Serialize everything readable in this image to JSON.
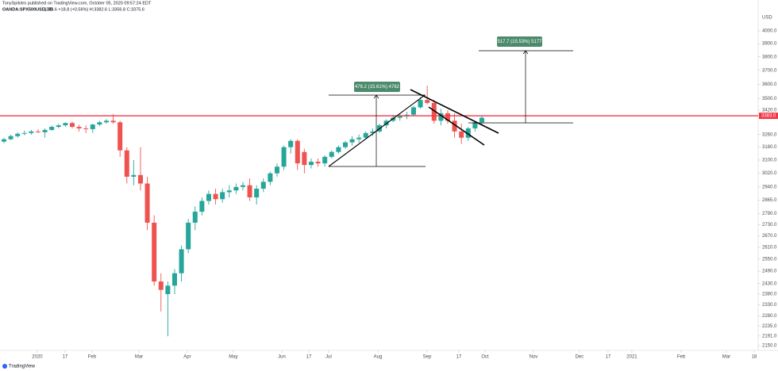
{
  "chart_data": {
    "type": "candlestick",
    "title": "TonySpilotro published on TradingView.com, October 05, 2020 09:57:24 EDT",
    "subtitle": "OANDA:SPX500USD, 3D",
    "quote": "3375.6 +18.8 (+0.56%) H:3382.6 L:3356.8 C:3375.6",
    "y_label": "USD",
    "footer": "TradingView",
    "up_color": "#26a69a",
    "down_color": "#ef5350",
    "log_scale": true,
    "ylim": [
      2120,
      4120
    ],
    "yticks": [
      {
        "value": 4000,
        "label": "4000.0"
      },
      {
        "value": 3900,
        "label": "3900.0"
      },
      {
        "value": 3800,
        "label": "3800.0"
      },
      {
        "value": 3700,
        "label": "3700.0"
      },
      {
        "value": 3600,
        "label": "3600.0"
      },
      {
        "value": 3500,
        "label": "3500.0"
      },
      {
        "value": 3420,
        "label": "3420.0"
      },
      {
        "value": 3260,
        "label": "3260.0"
      },
      {
        "value": 3180,
        "label": "3180.0"
      },
      {
        "value": 3100,
        "label": "3100.0"
      },
      {
        "value": 3020,
        "label": "3020.0"
      },
      {
        "value": 2940,
        "label": "2940.0"
      },
      {
        "value": 2865,
        "label": "2865.0"
      },
      {
        "value": 2790,
        "label": "2790.0"
      },
      {
        "value": 2730,
        "label": "2730.0"
      },
      {
        "value": 2670,
        "label": "2670.0"
      },
      {
        "value": 2610,
        "label": "2610.0"
      },
      {
        "value": 2550,
        "label": "2550.0"
      },
      {
        "value": 2490,
        "label": "2490.0"
      },
      {
        "value": 2430,
        "label": "2430.0"
      },
      {
        "value": 2380,
        "label": "2380.0"
      },
      {
        "value": 2330,
        "label": "2330.0"
      },
      {
        "value": 2280,
        "label": "2280.0"
      },
      {
        "value": 2235,
        "label": "2235.0"
      },
      {
        "value": 2191,
        "label": "2191.0"
      },
      {
        "value": 2150,
        "label": "2150.0"
      }
    ],
    "xlim": [
      -0.58,
      110.47
    ],
    "xticks": [
      {
        "value": 4.88,
        "label": "2020"
      },
      {
        "value": 8.95,
        "label": "17"
      },
      {
        "value": 12.9,
        "label": "Feb"
      },
      {
        "value": 19.77,
        "label": "Mar"
      },
      {
        "value": 26.86,
        "label": "Apr"
      },
      {
        "value": 33.6,
        "label": "May"
      },
      {
        "value": 40.7,
        "label": "Jun"
      },
      {
        "value": 44.65,
        "label": "17"
      },
      {
        "value": 47.56,
        "label": "Jul"
      },
      {
        "value": 54.77,
        "label": "Aug"
      },
      {
        "value": 61.98,
        "label": "Sep"
      },
      {
        "value": 66.63,
        "label": "17"
      },
      {
        "value": 70.47,
        "label": "Oct"
      },
      {
        "value": 77.56,
        "label": "Nov"
      },
      {
        "value": 84.3,
        "label": "Dec"
      },
      {
        "value": 88.49,
        "label": "17"
      },
      {
        "value": 91.98,
        "label": "2021"
      },
      {
        "value": 99.19,
        "label": "Feb"
      },
      {
        "value": 105.81,
        "label": "Mar"
      },
      {
        "value": 109.88,
        "label": "18"
      }
    ],
    "price_line": {
      "value": 3383,
      "label": "3383.0",
      "color": "#f23645"
    },
    "annotations": [
      "476.2 (15.61%) 4762",
      "517.7 (15.53%) 5177"
    ],
    "ohlc": [
      [
        3215,
        3240,
        3205,
        3230
      ],
      [
        3230,
        3260,
        3225,
        3250
      ],
      [
        3250,
        3275,
        3240,
        3265
      ],
      [
        3265,
        3285,
        3255,
        3270
      ],
      [
        3270,
        3290,
        3260,
        3280
      ],
      [
        3280,
        3295,
        3270,
        3275
      ],
      [
        3275,
        3300,
        3240,
        3290
      ],
      [
        3290,
        3320,
        3285,
        3310
      ],
      [
        3310,
        3330,
        3300,
        3320
      ],
      [
        3320,
        3340,
        3310,
        3335
      ],
      [
        3335,
        3345,
        3300,
        3310
      ],
      [
        3310,
        3325,
        3280,
        3300
      ],
      [
        3300,
        3320,
        3270,
        3295
      ],
      [
        3295,
        3330,
        3270,
        3325
      ],
      [
        3325,
        3350,
        3315,
        3340
      ],
      [
        3340,
        3360,
        3330,
        3350
      ],
      [
        3350,
        3395,
        3330,
        3340
      ],
      [
        3340,
        3350,
        3120,
        3160
      ],
      [
        3160,
        3180,
        2960,
        3000
      ],
      [
        3000,
        3100,
        2950,
        3010
      ],
      [
        3010,
        3180,
        2920,
        2960
      ],
      [
        2960,
        3000,
        2700,
        2740
      ],
      [
        2740,
        2780,
        2420,
        2440
      ],
      [
        2440,
        2480,
        2300,
        2400
      ],
      [
        2380,
        2440,
        2190,
        2420
      ],
      [
        2420,
        2500,
        2380,
        2480
      ],
      [
        2480,
        2620,
        2440,
        2600
      ],
      [
        2600,
        2760,
        2580,
        2740
      ],
      [
        2740,
        2830,
        2700,
        2800
      ],
      [
        2800,
        2880,
        2780,
        2860
      ],
      [
        2860,
        2920,
        2840,
        2900
      ],
      [
        2900,
        2930,
        2840,
        2870
      ],
      [
        2870,
        2930,
        2850,
        2910
      ],
      [
        2910,
        2950,
        2880,
        2920
      ],
      [
        2920,
        2960,
        2900,
        2940
      ],
      [
        2940,
        2970,
        2920,
        2950
      ],
      [
        2950,
        2990,
        2860,
        2880
      ],
      [
        2880,
        2950,
        2840,
        2930
      ],
      [
        2930,
        2990,
        2910,
        2970
      ],
      [
        2970,
        3030,
        2950,
        3020
      ],
      [
        3020,
        3080,
        3000,
        3060
      ],
      [
        3060,
        3190,
        3040,
        3180
      ],
      [
        3180,
        3230,
        3140,
        3220
      ],
      [
        3220,
        3230,
        3040,
        3080
      ],
      [
        3150,
        3170,
        3020,
        3070
      ],
      [
        3070,
        3110,
        3050,
        3090
      ],
      [
        3090,
        3110,
        3060,
        3080
      ],
      [
        3080,
        3130,
        3060,
        3120
      ],
      [
        3120,
        3160,
        3110,
        3150
      ],
      [
        3150,
        3190,
        3140,
        3180
      ],
      [
        3180,
        3220,
        3170,
        3210
      ],
      [
        3210,
        3250,
        3190,
        3230
      ],
      [
        3230,
        3260,
        3210,
        3240
      ],
      [
        3240,
        3280,
        3230,
        3270
      ],
      [
        3270,
        3300,
        3250,
        3280
      ],
      [
        3280,
        3330,
        3270,
        3320
      ],
      [
        3320,
        3360,
        3300,
        3350
      ],
      [
        3350,
        3390,
        3340,
        3370
      ],
      [
        3370,
        3400,
        3350,
        3380
      ],
      [
        3380,
        3410,
        3360,
        3390
      ],
      [
        3390,
        3450,
        3380,
        3440
      ],
      [
        3440,
        3510,
        3430,
        3490
      ],
      [
        3490,
        3590,
        3460,
        3470
      ],
      [
        3470,
        3490,
        3330,
        3350
      ],
      [
        3350,
        3430,
        3320,
        3400
      ],
      [
        3400,
        3420,
        3330,
        3350
      ],
      [
        3350,
        3400,
        3240,
        3280
      ],
      [
        3280,
        3330,
        3200,
        3240
      ],
      [
        3240,
        3310,
        3220,
        3300
      ],
      [
        3300,
        3350,
        3280,
        3340
      ],
      [
        3340,
        3380,
        3320,
        3370
      ]
    ]
  }
}
